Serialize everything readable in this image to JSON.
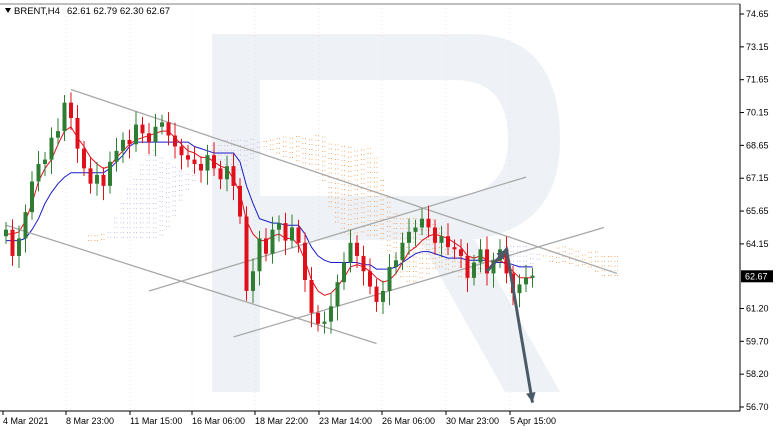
{
  "header": {
    "symbol": "BRENT,H4",
    "ohlc": "62.61 62.79 62.30 62.67"
  },
  "current_price_label": "62.67",
  "colors": {
    "bull": "#2e7d32",
    "bear": "#e0101a",
    "tenkan": "#e0101a",
    "kijun": "#1a1acc",
    "cloud": "#f08a30",
    "cloud_alt": "#b9a6d8",
    "trend": "#a8a8a8",
    "arrow": "#4a5a66",
    "watermark": "#eef1f5"
  },
  "chart_data": {
    "type": "candlestick",
    "y_ticks": [
      "74.65",
      "73.15",
      "71.65",
      "70.15",
      "68.65",
      "67.15",
      "65.65",
      "64.15",
      "62.67",
      "61.20",
      "59.70",
      "58.20",
      "56.70"
    ],
    "ylim": [
      56.7,
      74.65
    ],
    "x_ticks": [
      "4 Mar 2021",
      "8 Mar 23:00",
      "11 Mar 15:00",
      "16 Mar 06:00",
      "18 Mar 22:00",
      "23 Mar 14:00",
      "26 Mar 06:00",
      "30 Mar 23:00",
      "5 Apr 15:00"
    ],
    "n_bars": 82,
    "close": [
      64.8,
      63.6,
      64.4,
      65.6,
      67.0,
      67.8,
      68.0,
      69.0,
      69.3,
      70.6,
      69.9,
      68.5,
      67.6,
      66.9,
      67.3,
      66.8,
      67.9,
      68.4,
      68.9,
      68.7,
      69.6,
      69.2,
      68.8,
      69.5,
      69.7,
      69.1,
      68.6,
      68.2,
      68.0,
      67.8,
      67.5,
      68.2,
      67.6,
      67.1,
      67.7,
      66.8,
      65.4,
      62.0,
      62.9,
      64.4,
      63.7,
      64.8,
      65.1,
      64.3,
      64.9,
      64.2,
      62.5,
      61.0,
      60.5,
      60.6,
      61.3,
      62.4,
      63.3,
      64.2,
      63.6,
      62.9,
      62.2,
      61.5,
      62.0,
      63.1,
      63.4,
      64.2,
      64.7,
      64.9,
      65.3,
      64.9,
      64.2,
      64.5,
      64.0,
      63.9,
      63.6,
      62.6,
      63.3,
      63.9,
      62.8,
      63.4,
      63.9,
      62.8,
      61.9,
      62.3,
      62.6,
      62.7
    ],
    "tenkan_sen": [
      64.6,
      64.6,
      64.7,
      65.2,
      66.0,
      67.0,
      67.6,
      68.0,
      68.7,
      69.3,
      69.5,
      69.0,
      68.6,
      68.1,
      67.8,
      67.6,
      67.7,
      68.1,
      68.4,
      68.7,
      68.9,
      69.0,
      69.1,
      69.2,
      69.3,
      69.3,
      69.0,
      68.7,
      68.4,
      68.3,
      68.1,
      68.1,
      67.9,
      67.7,
      67.6,
      67.1,
      66.5,
      65.2,
      64.6,
      64.3,
      64.3,
      64.5,
      64.6,
      64.4,
      64.4,
      64.1,
      63.4,
      62.5,
      62.0,
      61.8,
      61.9,
      62.2,
      62.6,
      63.1,
      63.2,
      63.1,
      62.9,
      62.6,
      62.4,
      62.5,
      62.8,
      63.3,
      63.8,
      64.0,
      64.3,
      64.5,
      64.6,
      64.5,
      64.4,
      64.2,
      64.0,
      63.6,
      63.5,
      63.6,
      63.4,
      63.3,
      63.4,
      63.2,
      62.9,
      62.6,
      62.6,
      62.6
    ],
    "kijun_sen": [
      64.3,
      64.3,
      64.3,
      64.4,
      64.8,
      65.3,
      66.0,
      66.5,
      66.9,
      67.2,
      67.4,
      67.4,
      67.4,
      67.4,
      67.4,
      67.4,
      67.6,
      67.9,
      68.2,
      68.6,
      68.8,
      68.8,
      68.8,
      68.8,
      68.8,
      68.8,
      68.8,
      68.8,
      68.8,
      68.6,
      68.5,
      68.4,
      68.3,
      68.3,
      68.3,
      68.3,
      67.9,
      66.8,
      66.0,
      65.3,
      65.2,
      65.1,
      65.1,
      65.0,
      65.0,
      65.0,
      64.6,
      64.0,
      63.6,
      63.4,
      63.3,
      63.3,
      63.3,
      63.3,
      63.3,
      63.2,
      63.2,
      63.0,
      63.0,
      63.0,
      63.1,
      63.3,
      63.5,
      63.7,
      63.8,
      63.8,
      63.7,
      63.6,
      63.5,
      63.5,
      63.5,
      63.4,
      63.4,
      63.4,
      63.4,
      63.3,
      63.3,
      63.3,
      63.2,
      63.1,
      63.1,
      63.1
    ],
    "trend_lines": [
      {
        "from": [
          10,
          71.2
        ],
        "to": [
          94,
          62.8
        ]
      },
      {
        "from": [
          0,
          65.0
        ],
        "to": [
          57,
          59.6
        ]
      },
      {
        "from": [
          22,
          62.0
        ],
        "to": [
          80,
          67.2
        ]
      },
      {
        "from": [
          35,
          59.9
        ],
        "to": [
          92,
          64.9
        ]
      }
    ],
    "forecast_arrow": {
      "points": [
        [
          74,
          62.9
        ],
        [
          77,
          63.9
        ],
        [
          81,
          56.9
        ]
      ]
    }
  }
}
